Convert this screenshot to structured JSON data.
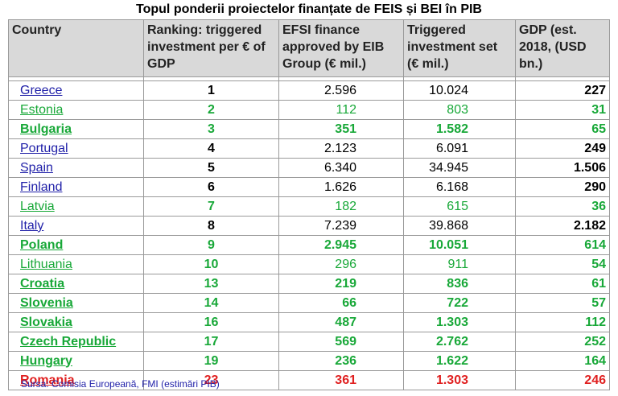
{
  "title": "Topul ponderii proiectelor finanțate de FEIS și BEI în PIB",
  "headers": {
    "country": "Country",
    "ranking": "Ranking: triggered investment per € of GDP",
    "efsi": "EFSI finance approved by EIB Group (€ mil.)",
    "triggered": "Triggered investment set (€ mil.)",
    "gdp": "GDP (est. 2018, (USD bn.)"
  },
  "rows": [
    {
      "country": "Greece",
      "rank": "1",
      "efsi": "2.596",
      "triggered": "10.024",
      "gdp": "227",
      "style": "blue"
    },
    {
      "country": "Estonia",
      "rank": "2",
      "efsi": "112",
      "triggered": "803",
      "gdp": "31",
      "style": "green"
    },
    {
      "country": "Bulgaria",
      "rank": "3",
      "efsi": "351",
      "triggered": "1.582",
      "gdp": "65",
      "style": "greenbold"
    },
    {
      "country": "Portugal",
      "rank": "4",
      "efsi": "2.123",
      "triggered": "6.091",
      "gdp": "249",
      "style": "blue"
    },
    {
      "country": "Spain",
      "rank": "5",
      "efsi": "6.340",
      "triggered": "34.945",
      "gdp": "1.506",
      "style": "blue"
    },
    {
      "country": "Finland",
      "rank": "6",
      "efsi": "1.626",
      "triggered": "6.168",
      "gdp": "290",
      "style": "blue"
    },
    {
      "country": "Latvia",
      "rank": "7",
      "efsi": "182",
      "triggered": "615",
      "gdp": "36",
      "style": "green"
    },
    {
      "country": "Italy",
      "rank": "8",
      "efsi": "7.239",
      "triggered": "39.868",
      "gdp": "2.182",
      "style": "blue"
    },
    {
      "country": "Poland",
      "rank": "9",
      "efsi": "2.945",
      "triggered": "10.051",
      "gdp": "614",
      "style": "greenbold"
    },
    {
      "country": "Lithuania",
      "rank": "10",
      "efsi": "296",
      "triggered": "911",
      "gdp": "54",
      "style": "green"
    },
    {
      "country": "Croatia",
      "rank": "13",
      "efsi": "219",
      "triggered": "836",
      "gdp": "61",
      "style": "greenbold"
    },
    {
      "country": "Slovenia",
      "rank": "14",
      "efsi": "66",
      "triggered": "722",
      "gdp": "57",
      "style": "greenbold"
    },
    {
      "country": "Slovakia",
      "rank": "16",
      "efsi": "487",
      "triggered": "1.303",
      "gdp": "112",
      "style": "greenbold"
    },
    {
      "country": "Czech Republic",
      "rank": "17",
      "efsi": "569",
      "triggered": "2.762",
      "gdp": "252",
      "style": "greenbold"
    },
    {
      "country": "Hungary",
      "rank": "19",
      "efsi": "236",
      "triggered": "1.622",
      "gdp": "164",
      "style": "greenbold"
    },
    {
      "country": "Romania",
      "rank": "23",
      "efsi": "361",
      "triggered": "1.303",
      "gdp": "246",
      "style": "red"
    }
  ],
  "source": "Sursa: Comisia Europeană, FMI (estimări PIB)",
  "colors": {
    "header_bg": "#d9d9d9",
    "link_blue": "#1f1fa8",
    "green": "#18a838",
    "red": "#e02020"
  }
}
